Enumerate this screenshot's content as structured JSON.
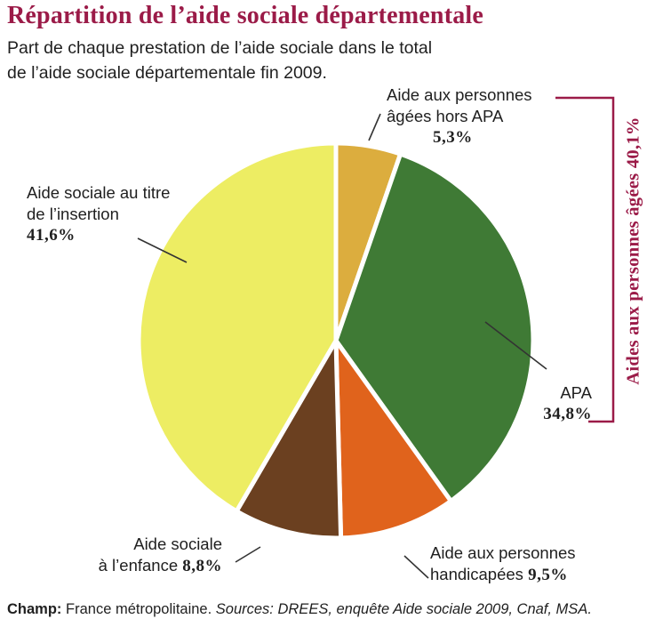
{
  "title": "Répartition de l’aide sociale départementale",
  "subtitle": {
    "line1": "Part de chaque prestation de l’aide sociale dans le total",
    "line2": "de l’aide sociale départementale fin 2009."
  },
  "chart_data": {
    "type": "pie",
    "slices": [
      {
        "label_lines": [
          "Aide aux personnes",
          "âgées hors APA"
        ],
        "value": 5.3,
        "value_label": "5,3%",
        "color": "#dcad3e"
      },
      {
        "label_lines": [
          "APA"
        ],
        "value": 34.8,
        "value_label": "34,8%",
        "color": "#3f7a35"
      },
      {
        "label_lines": [
          "Aide aux personnes",
          "handicapées"
        ],
        "value": 9.5,
        "value_label": "9,5%",
        "color": "#e0631c"
      },
      {
        "label_lines": [
          "Aide sociale",
          "à l’enfance"
        ],
        "value": 8.8,
        "value_label": "8,8%",
        "color": "#6b4020"
      },
      {
        "label_lines": [
          "Aide sociale au titre",
          "de l’insertion"
        ],
        "value": 41.6,
        "value_label": "41,6%",
        "color": "#eded63"
      }
    ],
    "group_bracket": {
      "label": "Aides aux personnes âgées 40,1%",
      "color": "#9b1b48"
    }
  },
  "footer": {
    "champ_label": "Champ:",
    "champ_text": "France métropolitaine.",
    "sources": "Sources: DREES, enquête Aide sociale 2009, Cnaf, MSA."
  }
}
